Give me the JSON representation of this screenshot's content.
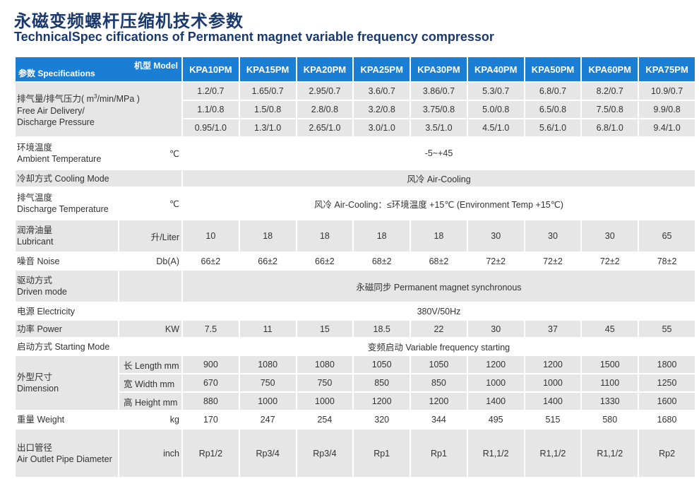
{
  "title_cn": "永磁变频螺杆压缩机技术参数",
  "title_en": "TechnicalSpec cifications of Permanent magnet variable frequency compressor",
  "header": {
    "model_label": "机型 Model",
    "spec_label": "参数 Specifications",
    "models": [
      "KPA10PM",
      "KPA15PM",
      "KPA20PM",
      "KPA25PM",
      "KPA30PM",
      "KPA40PM",
      "KPA50PM",
      "KPA60PM",
      "KPA75PM"
    ]
  },
  "free_air": {
    "label_cn": "排气量/排气压力( m",
    "label_sup": "3",
    "label_cn_tail": "/min/MPa )",
    "label_en1": "Free Air Delivery/",
    "label_en2": "Discharge Pressure",
    "rows": [
      [
        "1.2/0.7",
        "1.65/0.7",
        "2.95/0.7",
        "3.6/0.7",
        "3.86/0.7",
        "5.3/0.7",
        "6.8/0.7",
        "8.2/0.7",
        "10.9/0.7"
      ],
      [
        "1.1/0.8",
        "1.5/0.8",
        "2.8/0.8",
        "3.2/0.8",
        "3.75/0.8",
        "5.0/0.8",
        "6.5/0.8",
        "7.5/0.8",
        "9.9/0.8"
      ],
      [
        "0.95/1.0",
        "1.3/1.0",
        "2.65/1.0",
        "3.0/1.0",
        "3.5/1.0",
        "4.5/1.0",
        "5.6/1.0",
        "6.8/1.0",
        "9.4/1.0"
      ]
    ]
  },
  "ambient": {
    "label_cn": "环境温度",
    "label_en": "Ambient Temperature",
    "unit": "℃",
    "value": "-5~+45"
  },
  "cooling": {
    "label": "冷却方式 Cooling Mode",
    "value": "风冷 Air-Cooling"
  },
  "discharge_temp": {
    "label_cn": "排气温度",
    "label_en": "Discharge Temperature",
    "unit": "℃",
    "value": "风冷 Air-Cooling：≤环境温度 +15℃ (Environment Temp +15℃)"
  },
  "lubricant": {
    "label_cn": "润滑油量",
    "label_en": "Lubricant",
    "unit": "升/Liter",
    "values": [
      "10",
      "18",
      "18",
      "18",
      "18",
      "30",
      "30",
      "30",
      "65"
    ]
  },
  "noise": {
    "label": "噪音 Noise",
    "unit": "Db(A)",
    "values": [
      "66±2",
      "66±2",
      "66±2",
      "68±2",
      "68±2",
      "72±2",
      "72±2",
      "72±2",
      "78±2"
    ]
  },
  "driven": {
    "label_cn": "驱动方式",
    "label_en": "Driven mode",
    "value": "永磁同步 Permanent magnet synchronous"
  },
  "power_supply": {
    "label": "电源 Electricity",
    "value": "380V/50Hz"
  },
  "power": {
    "label": "功率 Power",
    "unit": "KW",
    "values": [
      "7.5",
      "11",
      "15",
      "18.5",
      "22",
      "30",
      "37",
      "45",
      "55"
    ]
  },
  "starting": {
    "label": "启动方式 Starting Mode",
    "value": "变频启动 Variable frequency starting"
  },
  "dimension": {
    "label_cn": "外型尺寸",
    "label_en": "Dimension",
    "rows": [
      {
        "key": "长 Length mm",
        "values": [
          "900",
          "1080",
          "1080",
          "1050",
          "1050",
          "1200",
          "1200",
          "1500",
          "1800"
        ]
      },
      {
        "key": "宽  Width mm",
        "values": [
          "670",
          "750",
          "750",
          "850",
          "850",
          "1000",
          "1000",
          "1100",
          "1250"
        ]
      },
      {
        "key": "高  Height mm",
        "values": [
          "880",
          "1000",
          "1000",
          "1200",
          "1200",
          "1400",
          "1400",
          "1330",
          "1600"
        ]
      }
    ]
  },
  "weight": {
    "label": "重量 Weight",
    "unit": "kg",
    "values": [
      "170",
      "247",
      "254",
      "320",
      "344",
      "495",
      "515",
      "580",
      "1680"
    ]
  },
  "outlet": {
    "label_cn": "出口管径",
    "label_en": "Air Outlet Pipe Diameter",
    "unit": "inch",
    "values": [
      "Rp1/2",
      "Rp3/4",
      "Rp3/4",
      "Rp1",
      "Rp1",
      "R1,1/2",
      "R1,1/2",
      "R1,1/2",
      "Rp2"
    ]
  }
}
